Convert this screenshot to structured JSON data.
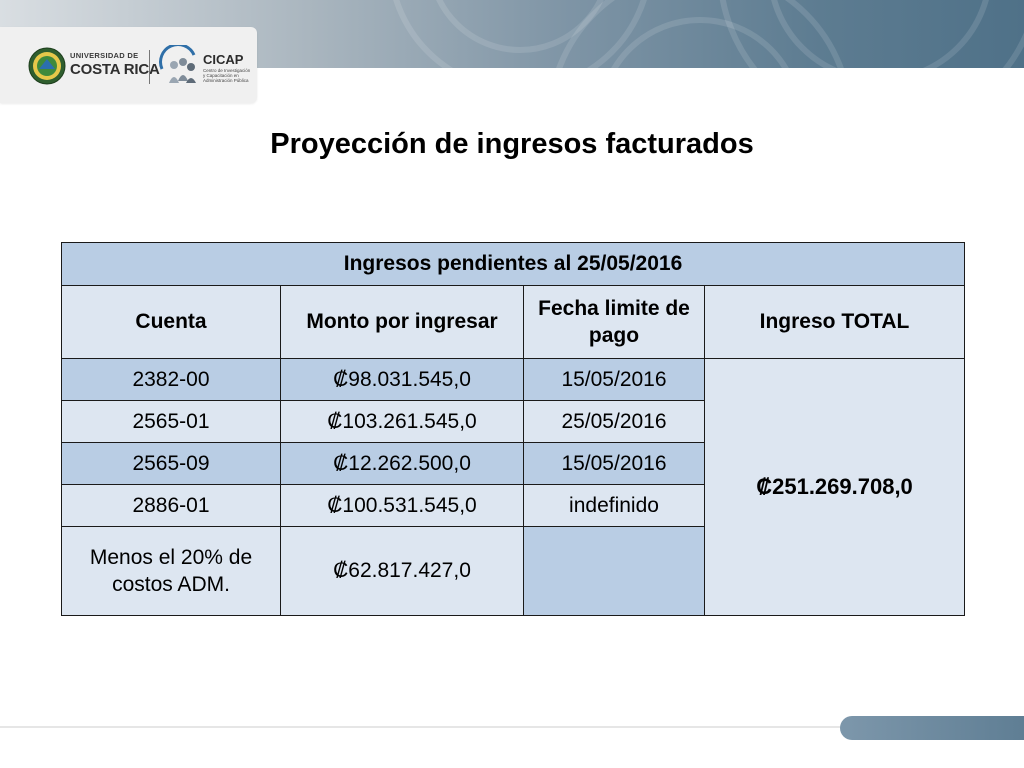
{
  "header": {
    "ucr_logo": {
      "top_text": "UNIVERSIDAD DE",
      "main_text": "COSTA RICA"
    },
    "cicap_logo": {
      "title": "CICAP",
      "subtitle": "Centro de Investigación y Capacitación en Administración Pública"
    },
    "colors": {
      "band_dark": "#4f7188",
      "band_light": "#d9dee2"
    }
  },
  "page": {
    "title": "Proyección de ingresos facturados"
  },
  "table": {
    "banner": "Ingresos pendientes  al 25/05/2016",
    "headers": [
      "Cuenta",
      "Monto por ingresar",
      "Fecha limite de pago",
      "Ingreso TOTAL"
    ],
    "rows": [
      {
        "cuenta": "2382-00",
        "monto": "₡98.031.545,0",
        "fecha": "15/05/2016"
      },
      {
        "cuenta": "2565-01",
        "monto": "₡103.261.545,0",
        "fecha": "25/05/2016"
      },
      {
        "cuenta": "2565-09",
        "monto": "₡12.262.500,0",
        "fecha": "15/05/2016"
      },
      {
        "cuenta": "2886-01",
        "monto": "₡100.531.545,0",
        "fecha": "indefinido"
      },
      {
        "cuenta": "Menos el 20% de costos ADM.",
        "monto": "₡62.817.427,0",
        "fecha": ""
      }
    ],
    "total": "₡251.269.708,0",
    "colors": {
      "dark_row": "#b9cde4",
      "light_row": "#dde6f1"
    }
  }
}
